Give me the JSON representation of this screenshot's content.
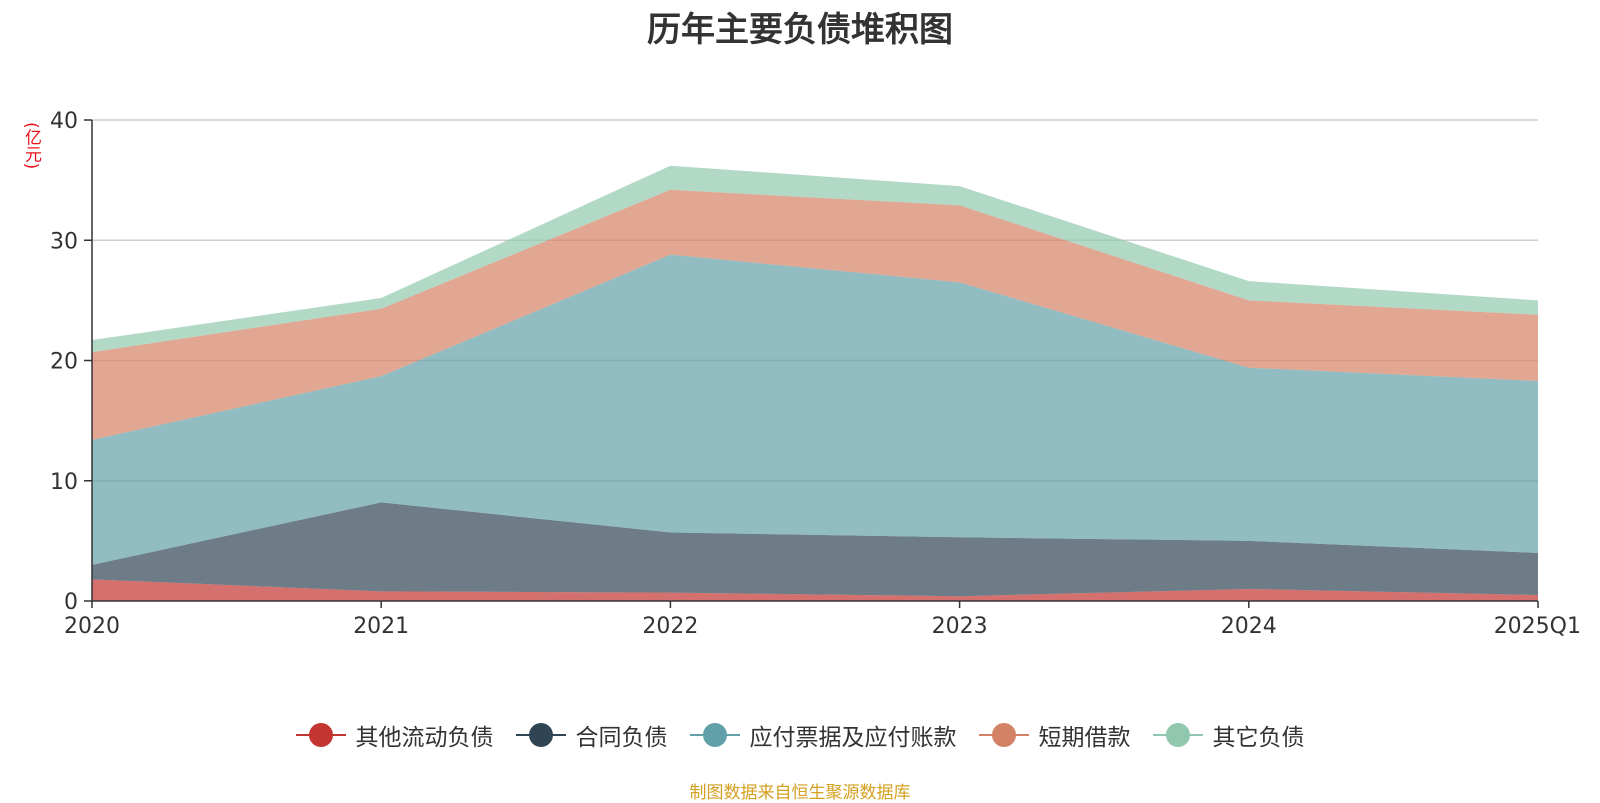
{
  "title": "历年主要负债堆积图",
  "unit": "(亿元)",
  "source": "制图数据来自恒生聚源数据库",
  "chart_data": {
    "type": "area",
    "stacked": true,
    "title": "历年主要负债堆积图",
    "ylabel": "(亿元)",
    "categories": [
      "2020",
      "2021",
      "2022",
      "2023",
      "2024",
      "2025Q1"
    ],
    "ylim": [
      0,
      40
    ],
    "yticks": [
      0,
      10,
      20,
      30,
      40
    ],
    "grid": true,
    "legend_position": "bottom",
    "series": [
      {
        "name": "其他流动负债",
        "color": "#c23531",
        "values": [
          1.8,
          0.8,
          0.7,
          0.4,
          1.0,
          0.5
        ]
      },
      {
        "name": "合同负债",
        "color": "#2f4554",
        "values": [
          1.2,
          7.4,
          5.0,
          4.9,
          4.0,
          3.5
        ]
      },
      {
        "name": "应付票据及应付账款",
        "color": "#61a0a8",
        "values": [
          10.4,
          10.5,
          23.1,
          21.2,
          14.4,
          14.3
        ]
      },
      {
        "name": "短期借款",
        "color": "#d48265",
        "values": [
          7.3,
          5.6,
          5.4,
          6.4,
          5.6,
          5.5
        ]
      },
      {
        "name": "其它负债",
        "color": "#91c7ae",
        "values": [
          1.0,
          0.9,
          2.0,
          1.6,
          1.6,
          1.2
        ]
      }
    ]
  }
}
